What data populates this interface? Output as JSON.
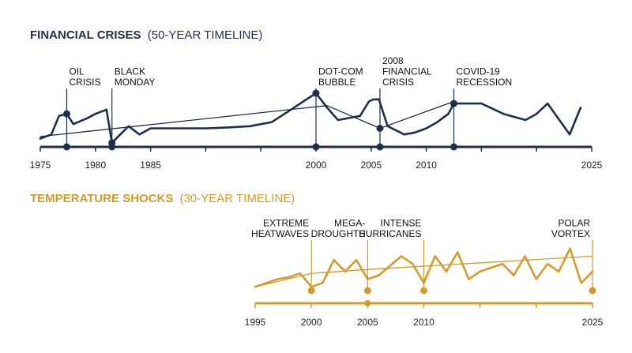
{
  "colors": {
    "navy": "#1e2f4d",
    "gold": "#d49a2a",
    "background": "#ffffff"
  },
  "chart_data": [
    {
      "type": "line",
      "title": "FINANCIAL CRISES",
      "subtitle": "(50-YEAR TIMELINE)",
      "xlim": [
        1975,
        2025
      ],
      "ticks": [
        "1975",
        "1980",
        "1985",
        "1990",
        "1995",
        "2000",
        "2005",
        "2010",
        "2015",
        "2020",
        "2025"
      ],
      "xlabels": [
        "1975",
        "1980",
        "1985",
        "2000",
        "2005",
        "2010",
        "2025"
      ],
      "series": [
        {
          "x": [
            1975,
            1976,
            1976.7,
            1977.4,
            1978,
            1979.3,
            1980,
            1981,
            1981.5,
            1983,
            1984,
            1985,
            1986,
            1987,
            1988,
            1990,
            1992,
            1994,
            1996,
            1998,
            2000,
            2001,
            2002,
            2003,
            2004,
            2004.8,
            2005.2,
            2005.7,
            2006.5,
            2008,
            2009,
            2010,
            2011,
            2012,
            2012.5,
            2013,
            2014,
            2015,
            2017,
            2019,
            2020,
            2021,
            2023,
            2024
          ],
          "y": [
            2,
            3,
            7.5,
            8,
            5.5,
            7,
            8,
            9,
            1,
            5,
            3,
            4.5,
            4.5,
            4.5,
            4.5,
            4.5,
            4.7,
            5,
            6,
            9.5,
            13,
            9.5,
            6.5,
            7,
            7.5,
            11,
            11.5,
            11.5,
            5,
            3,
            3.5,
            4.5,
            6,
            8,
            10.5,
            10.5,
            10.5,
            10.5,
            8,
            6.5,
            8,
            10.5,
            3,
            9.5
          ]
        },
        {
          "type": "trend",
          "x": [
            1975,
            2001,
            2005.8,
            2012.5
          ],
          "y": [
            2.5,
            10,
            4.5,
            11
          ]
        }
      ],
      "events": [
        {
          "x": 1977.4,
          "y": 8,
          "label": [
            "OIL",
            "CRISIS"
          ]
        },
        {
          "x": 1981.5,
          "y": 1,
          "label": [
            "BLACK",
            "MONDAY"
          ]
        },
        {
          "x": 2000,
          "y": 13,
          "label": [
            "DOT-COM",
            "BUBBLE"
          ]
        },
        {
          "x": 2005.8,
          "y": 4.5,
          "label": [
            "2008",
            "FINANCIAL",
            "CRISIS"
          ]
        },
        {
          "x": 2012.5,
          "y": 10.5,
          "label": [
            "COVID-19",
            "RECESSION"
          ]
        }
      ]
    },
    {
      "type": "line",
      "title": "TEMPERATURE SHOCKS",
      "subtitle": "(30-YEAR TIMELINE)",
      "xlim": [
        1995,
        2025
      ],
      "ticks": [
        "1995",
        "2000",
        "2005",
        "2010",
        "2015",
        "2020",
        "2025"
      ],
      "xlabels": [
        "1995",
        "2000",
        "2005",
        "2010",
        "2025"
      ],
      "series": [
        {
          "x": [
            1995,
            1996,
            1997,
            1998,
            1999,
            2000,
            2001,
            2002,
            2003,
            2004,
            2005,
            2006,
            2007,
            2008,
            2009,
            2010,
            2011,
            2012,
            2013,
            2014,
            2015,
            2016,
            2017,
            2018,
            2019,
            2020,
            2021,
            2022,
            2023,
            2024,
            2025
          ],
          "y": [
            1,
            2,
            3,
            3.5,
            4.5,
            1,
            2,
            8,
            5,
            8,
            3,
            4,
            6.5,
            9,
            7,
            2,
            9,
            5,
            10,
            3,
            5,
            6,
            7,
            4,
            9,
            3,
            7,
            5,
            11,
            2,
            5
          ]
        },
        {
          "type": "trend",
          "x": [
            1995,
            2000,
            2005,
            2025
          ],
          "y": [
            1,
            4.5,
            5.5,
            9
          ]
        }
      ],
      "events": [
        {
          "x": 2000,
          "y": 0,
          "label": [
            "EXTREME",
            "HEATWAVES"
          ]
        },
        {
          "x": 2005,
          "y": 0,
          "label": [
            "MEGA-",
            "DROUGHTS"
          ]
        },
        {
          "x": 2010,
          "y": 0,
          "label": [
            "INTENSE",
            "HURRICANES"
          ]
        },
        {
          "x": 2025,
          "y": 0,
          "label": [
            "POLAR",
            "VORTEX"
          ]
        }
      ]
    }
  ]
}
